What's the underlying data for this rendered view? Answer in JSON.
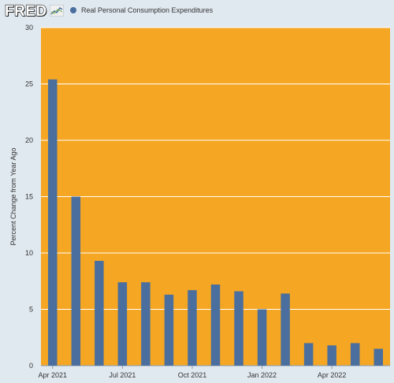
{
  "header": {
    "logo_text": "FRED"
  },
  "legend": {
    "label": "Real Personal Consumption Expenditures"
  },
  "colors": {
    "background": "#e1e9f0",
    "plot_area": "#f5a623",
    "bar": "#4a6f9e",
    "grid": "#ffffff"
  },
  "chart_data": {
    "type": "bar",
    "title": "",
    "ylabel": "Percent Change from Year Ago",
    "xlabel": "",
    "ylim": [
      0,
      30
    ],
    "yticks": [
      0,
      5,
      10,
      15,
      20,
      25,
      30
    ],
    "grid": "horizontal",
    "categories": [
      "Apr 2021",
      "May 2021",
      "Jun 2021",
      "Jul 2021",
      "Aug 2021",
      "Sep 2021",
      "Oct 2021",
      "Nov 2021",
      "Dec 2021",
      "Jan 2022",
      "Feb 2022",
      "Mar 2022",
      "Apr 2022",
      "May 2022",
      "Jun 2022"
    ],
    "x_tick_labels": [
      "Apr 2021",
      "Jul 2021",
      "Oct 2021",
      "Jan 2022",
      "Apr 2022"
    ],
    "series": [
      {
        "name": "Real Personal Consumption Expenditures",
        "values": [
          25.4,
          15.0,
          9.3,
          7.4,
          7.4,
          6.3,
          6.7,
          7.2,
          6.6,
          5.0,
          6.4,
          2.0,
          1.8,
          2.0,
          1.5
        ]
      }
    ]
  }
}
